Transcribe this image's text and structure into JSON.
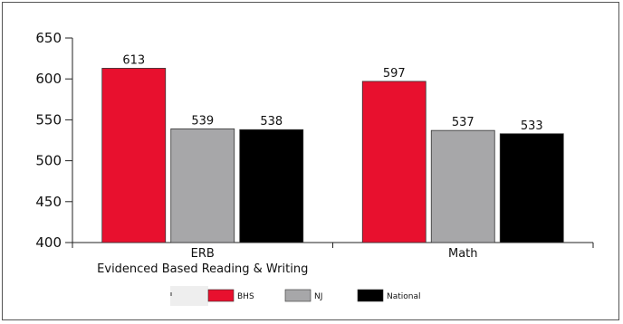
{
  "chart_data": {
    "type": "bar",
    "categories": [
      [
        "ERB",
        "Evidenced Based Reading & Writing"
      ],
      [
        "Math"
      ]
    ],
    "series": [
      {
        "name": "BHS",
        "color": "#e8102e",
        "values": [
          613,
          597
        ]
      },
      {
        "name": "NJ",
        "color": "#a7a7a9",
        "values": [
          539,
          537
        ]
      },
      {
        "name": "National",
        "color": "#000000",
        "values": [
          538,
          533
        ]
      }
    ],
    "ylim": [
      400,
      650
    ],
    "yticks": [
      400,
      450,
      500,
      550,
      600,
      650
    ],
    "grid": false,
    "legend": "bottom",
    "title": "",
    "xlabel": "",
    "ylabel": ""
  }
}
